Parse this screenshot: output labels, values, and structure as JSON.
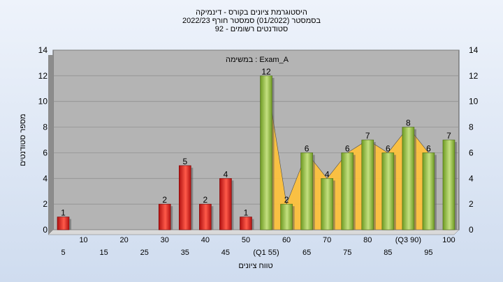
{
  "header": {
    "title": "היסטוגרמת ציונים בקורס - דינמיקה",
    "semester": "בסמסטר  (01/2022)  סמסטר חורף  2022/23",
    "students": "סטודנטים רשומים - 92"
  },
  "chart_data": {
    "type": "bar",
    "title": "היסטוגרמת ציונים בקורס - דינמיקה",
    "annotation": "במשימה : Exam_A",
    "xlabel": "טווח ציונים",
    "ylabel": "מספר סטודנטים",
    "ylim": [
      0,
      14
    ],
    "yticks": [
      0,
      2,
      4,
      6,
      8,
      10,
      12,
      14
    ],
    "grid": true,
    "categories": [
      "5",
      "10",
      "15",
      "20",
      "25",
      "30",
      "35",
      "40",
      "45",
      "50",
      "55",
      "60",
      "65",
      "70",
      "75",
      "80",
      "85",
      "90",
      "95",
      "100"
    ],
    "category_labels": [
      "5",
      "10",
      "15",
      "20",
      "25",
      "30",
      "35",
      "40",
      "45",
      "50",
      "(Q1 55)",
      "60",
      "65",
      "70",
      "75",
      "80",
      "85",
      "(Q3 90)",
      "95",
      "100"
    ],
    "values": [
      1,
      0,
      0,
      0,
      0,
      2,
      5,
      2,
      4,
      1,
      12,
      2,
      6,
      4,
      6,
      7,
      6,
      8,
      6,
      7
    ],
    "data_labels": [
      "1",
      "",
      "",
      "",
      "",
      "2",
      "5",
      "2",
      "4",
      "1",
      "12",
      "2",
      "6",
      "4",
      "6",
      "7",
      "6",
      "8",
      "6",
      "7"
    ],
    "pass_threshold": 55,
    "colors": {
      "fail_bar": "#dd2424",
      "pass_bar": "#8fbf3a",
      "area": "#ffc23a",
      "plot_bg": "#b4b4b4",
      "grid": "#8a8a8a"
    }
  }
}
